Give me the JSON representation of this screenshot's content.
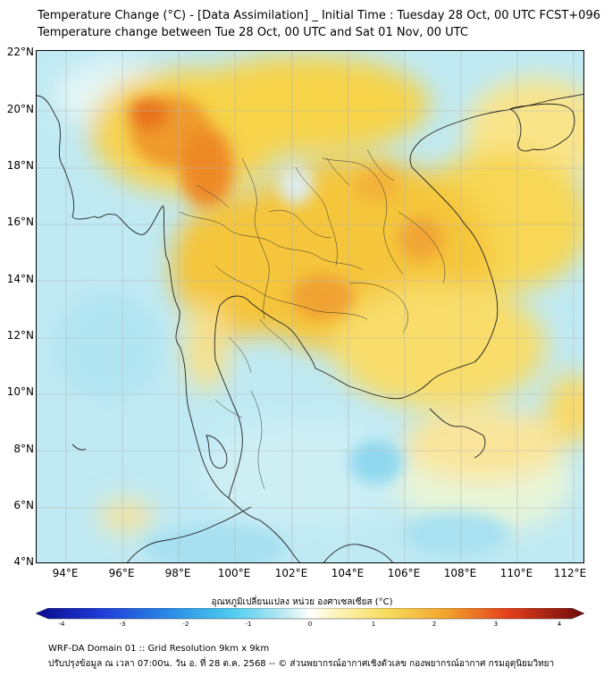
{
  "header": {
    "title_line1": "Temperature Change (°C) - [Data Assimilation] _ Initial Time : Tuesday 28 Oct, 00 UTC FCST+096",
    "title_line2": "Temperature change between Tue 28 Oct, 00 UTC and Sat 01 Nov, 00 UTC"
  },
  "map": {
    "lat_labels": [
      "22°N",
      "20°N",
      "18°N",
      "16°N",
      "14°N",
      "12°N",
      "10°N",
      "8°N",
      "6°N",
      "4°N"
    ],
    "lon_labels": [
      "94°E",
      "96°E",
      "98°E",
      "100°E",
      "102°E",
      "104°E",
      "106°E",
      "108°E",
      "110°E",
      "112°E"
    ],
    "background_color": "#bfe9f3",
    "warm_color": "#f6c23c",
    "hot_color": "#ea6a1c"
  },
  "colorbar": {
    "label": "อุณหภูมิเปลี่ยนแปลง หน่วย องศาเซลเซียส (°C)",
    "ticks": [
      "-4",
      "-3",
      "-2",
      "-1",
      "0",
      "1",
      "2",
      "3",
      "4"
    ]
  },
  "footer": {
    "line1": "WRF-DA Domain 01 :: Grid Resolution 9km x 9km",
    "line2": "ปรับปรุงข้อมูล ณ เวลา 07:00น. วัน อ. ที่ 28 ต.ค. 2568 -- © ส่วนพยากรณ์อากาศเชิงตัวเลข กองพยากรณ์อากาศ กรมอุตุนิยมวิทยา"
  }
}
